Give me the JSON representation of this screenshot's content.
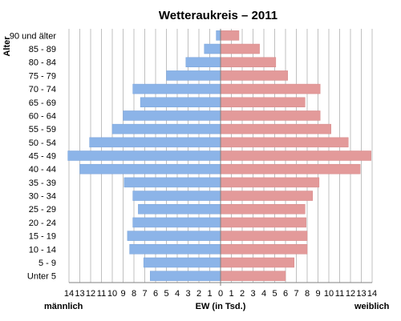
{
  "chart_data": {
    "type": "bar",
    "orientation": "horizontal",
    "title": "Wetteraukreis – 2011",
    "ylabel": "Alter",
    "xlabel": "EW (in Tsd.)",
    "left_label": "männlich",
    "right_label": "weiblich",
    "xlim": [
      0,
      14
    ],
    "grid": true,
    "categories": [
      "90 und älter",
      "85 - 89",
      "80 - 84",
      "75 - 79",
      "70 - 74",
      "65 - 69",
      "60 - 64",
      "55 - 59",
      "50 - 54",
      "45 - 49",
      "40 - 44",
      "35 - 39",
      "30 - 34",
      "25 - 29",
      "20 - 24",
      "15 - 19",
      "10 - 14",
      "5 - 9",
      "Unter 5"
    ],
    "series": [
      {
        "values": [
          0.4,
          1.5,
          3.2,
          5.0,
          8.1,
          7.4,
          9.0,
          10.0,
          12.1,
          14.1,
          13.0,
          8.9,
          8.1,
          7.6,
          8.1,
          8.6,
          8.4,
          7.1,
          6.5
        ]
      },
      {
        "values": [
          1.7,
          3.6,
          5.1,
          6.2,
          9.2,
          7.8,
          9.2,
          10.2,
          11.8,
          13.9,
          12.9,
          9.1,
          8.5,
          7.8,
          7.9,
          8.0,
          8.0,
          6.8,
          6.0
        ]
      }
    ],
    "xticks": [
      "14",
      "13",
      "12",
      "11",
      "10",
      "9",
      "8",
      "7",
      "6",
      "5",
      "4",
      "3",
      "2",
      "1",
      "0",
      "1",
      "2",
      "3",
      "4",
      "5",
      "6",
      "7",
      "8",
      "9",
      "10",
      "11",
      "12",
      "13",
      "14"
    ],
    "colors": {
      "male": "#8cb4e8",
      "female": "#e39a9a",
      "grid": "#c0c0c0",
      "axis": "#808080"
    }
  }
}
